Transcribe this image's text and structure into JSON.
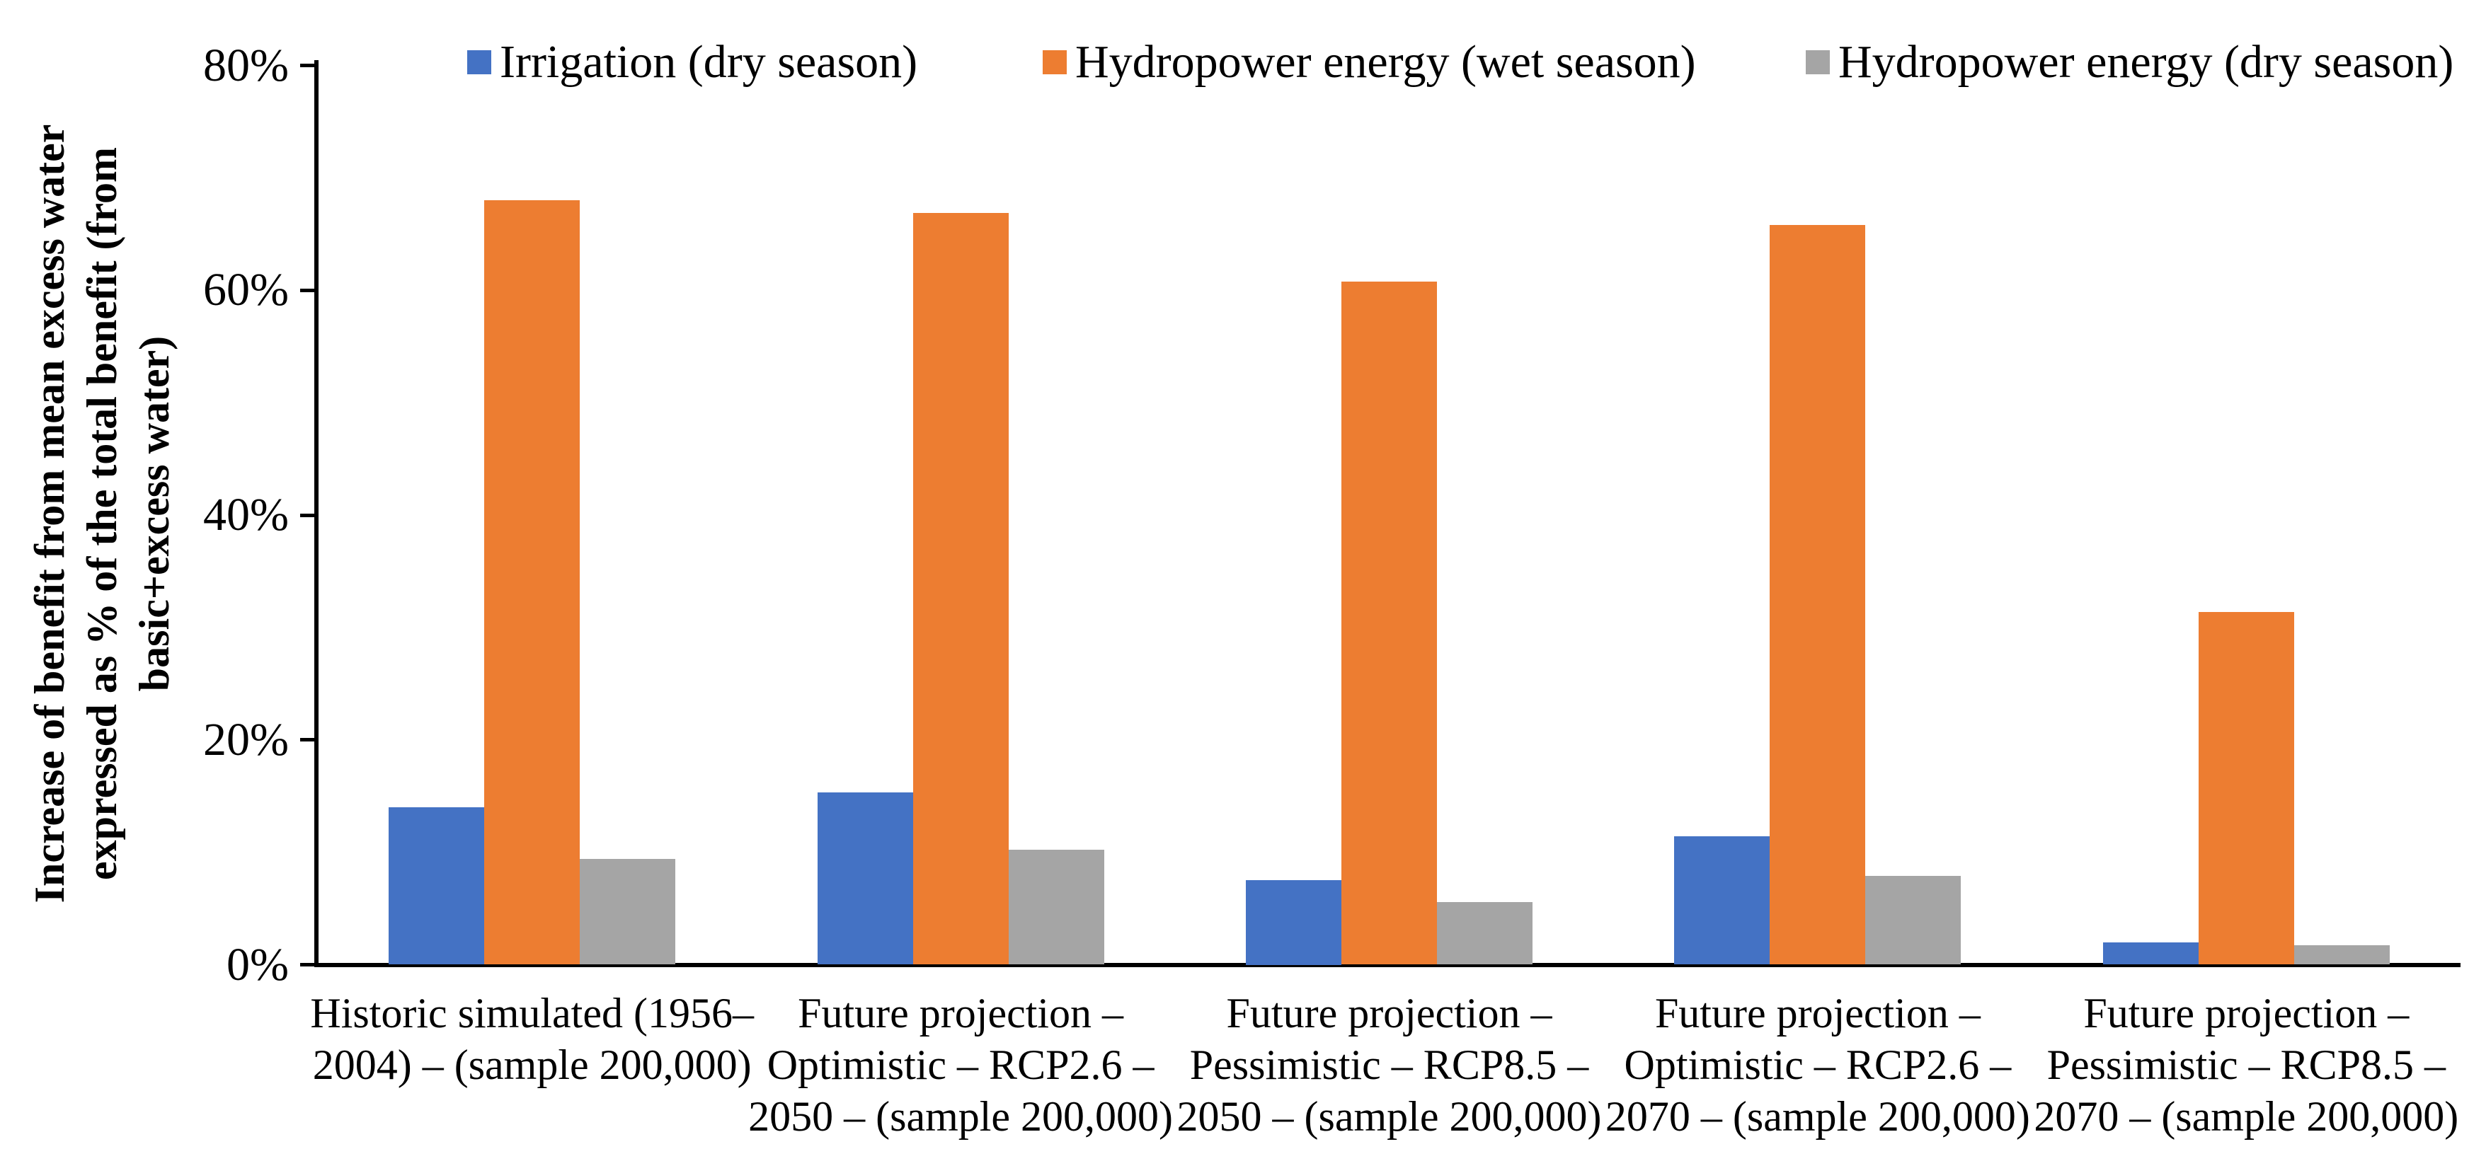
{
  "figure": {
    "background": "#ffffff",
    "text_color": "#000000",
    "axis_color": "#000000"
  },
  "chart_data": {
    "type": "bar",
    "title": "",
    "xlabel": "",
    "ylabel": "Increase of benefit from mean excess water expressed as % of the total benefit (from basic+excess water)",
    "ylabel_lines": [
      "Increase of benefit from mean excess water",
      "expressed as % of the total benefit (from",
      "basic+excess water)"
    ],
    "ylim": [
      0,
      80
    ],
    "ytick_values": [
      0,
      20,
      40,
      60,
      80
    ],
    "ytick_labels": [
      "0%",
      "20%",
      "40%",
      "60%",
      "80%"
    ],
    "grid": "off",
    "legend_position": "top",
    "categories": [
      "Historic simulated (1956–2004) – (sample 200,000)",
      "Future projection – Optimistic – RCP2.6 – 2050 – (sample 200,000)",
      "Future projection – Pessimistic – RCP8.5 – 2050 – (sample 200,000)",
      "Future projection – Optimistic – RCP2.6 – 2070 – (sample 200,000)",
      "Future projection – Pessimistic – RCP8.5 – 2070 – (sample 200,000)"
    ],
    "category_label_lines": [
      [
        "Historic simulated (1956–",
        "2004) – (sample 200,000)"
      ],
      [
        "Future projection –",
        "Optimistic – RCP2.6 –",
        "2050 – (sample 200,000)"
      ],
      [
        "Future projection –",
        "Pessimistic – RCP8.5 –",
        "2050 – (sample 200,000)"
      ],
      [
        "Future projection –",
        "Optimistic – RCP2.6 –",
        "2070 – (sample 200,000)"
      ],
      [
        "Future projection –",
        "Pessimistic – RCP8.5 –",
        "2070 – (sample 200,000)"
      ]
    ],
    "series": [
      {
        "name": "Irrigation (dry season)",
        "color": "#4472C4",
        "values": [
          14.0,
          15.3,
          7.5,
          11.4,
          2.0
        ]
      },
      {
        "name": "Hydropower energy (wet season)",
        "color": "#ED7D31",
        "values": [
          68.0,
          66.9,
          60.8,
          65.8,
          31.4
        ]
      },
      {
        "name": "Hydropower energy (dry season)",
        "color": "#A5A5A5",
        "values": [
          9.4,
          10.2,
          5.6,
          7.9,
          1.7
        ]
      }
    ]
  }
}
